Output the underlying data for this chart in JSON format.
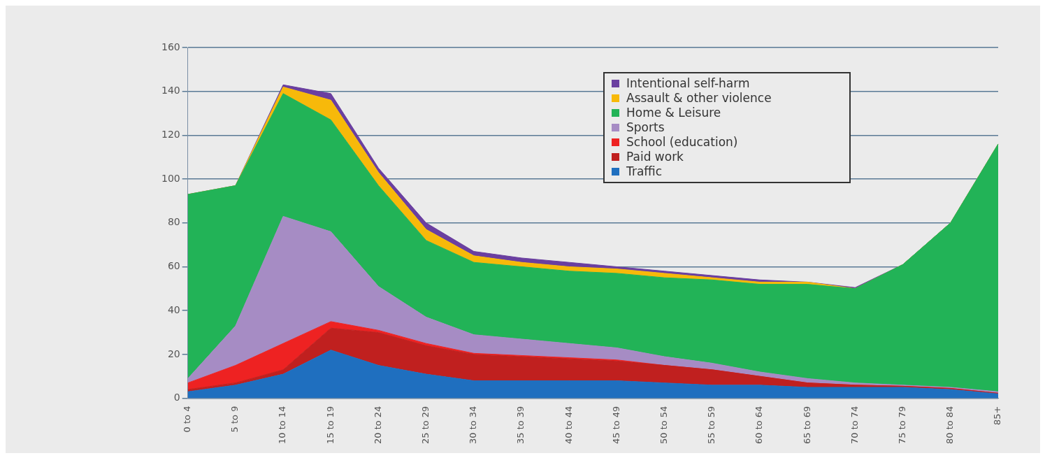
{
  "chart_data": {
    "type": "area",
    "stacked": true,
    "categories": [
      "0 to 4",
      "5 to 9",
      "10 to 14",
      "15 to 19",
      "20 to 24",
      "25 to 29",
      "30 to 34",
      "35 to 39",
      "40 to 44",
      "45 to 49",
      "50 to 54",
      "55 to 59",
      "60 to 64",
      "65 to 69",
      "70 to 74",
      "75 to 79",
      "80 to 84",
      "85+"
    ],
    "series": [
      {
        "name": "Traffic",
        "color": "#1f6fbf",
        "values": [
          3,
          6,
          11,
          22,
          15,
          11,
          8,
          8,
          8,
          8,
          7,
          6,
          6,
          5,
          5,
          5,
          4,
          2
        ]
      },
      {
        "name": "Paid work",
        "color": "#c0201f",
        "values": [
          1,
          1,
          2,
          10,
          15,
          13,
          12,
          11,
          10,
          9,
          8,
          7,
          4,
          2,
          1,
          0.5,
          0.5,
          0.3
        ]
      },
      {
        "name": "School (education)",
        "color": "#ee2222",
        "values": [
          3,
          8,
          12,
          3,
          1,
          1,
          0.5,
          0.5,
          0.5,
          0.5,
          0,
          0,
          0,
          0,
          0,
          0,
          0,
          0
        ]
      },
      {
        "name": "Sports",
        "color": "#a68cc4",
        "values": [
          2,
          18,
          58,
          41,
          20,
          12,
          8.5,
          7.5,
          6.5,
          5.5,
          4,
          3,
          2,
          2,
          1,
          0.5,
          0.5,
          0.7
        ]
      },
      {
        "name": "Home & Leisure",
        "color": "#22b357",
        "values": [
          84,
          64,
          56,
          51,
          46,
          35,
          33,
          33,
          33,
          34,
          36,
          38,
          40,
          43,
          43,
          55,
          75,
          113
        ]
      },
      {
        "name": "Assault & other violence",
        "color": "#f7b90a",
        "values": [
          0,
          0,
          3,
          9,
          6,
          5,
          3,
          2,
          2,
          2,
          2,
          1,
          1,
          1,
          0,
          0,
          0,
          0
        ]
      },
      {
        "name": "Intentional self-harm",
        "color": "#6a3fa0",
        "values": [
          0,
          0,
          1,
          3,
          2,
          3,
          2,
          2,
          2,
          1,
          1,
          1,
          1,
          0,
          0.5,
          0,
          0,
          0
        ]
      }
    ],
    "ylim": [
      0,
      160
    ],
    "yticks": [
      0,
      20,
      40,
      60,
      80,
      100,
      120,
      140,
      160
    ],
    "grid": "y",
    "legend": "top right"
  }
}
